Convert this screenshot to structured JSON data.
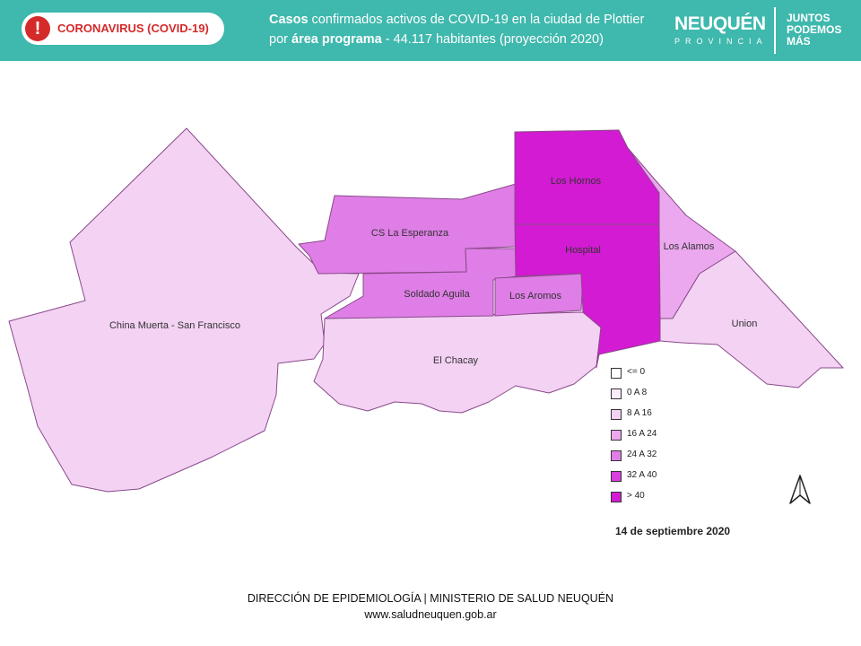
{
  "header": {
    "badge_label": "CORONAVIRUS (COVID-19)",
    "title_line1_bold": "Casos",
    "title_line1_rest": " confirmados activos de COVID-19 en la ciudad de Plottier",
    "title_line2_pre": "por ",
    "title_line2_bold": "área programa",
    "title_line2_rest": " - 44.117 habitantes (proyección 2020)",
    "brand_name": "NEUQUÉN",
    "brand_sub": "PROVINCIA",
    "slogan": [
      "JUNTOS",
      "PODEMOS",
      "MÁS"
    ]
  },
  "map": {
    "areas": [
      {
        "id": "china-muerta",
        "label": "China Muerta - San Francisco",
        "class": "8 A 16",
        "color": "#f3d2f3"
      },
      {
        "id": "el-chacay",
        "label": "El Chacay",
        "class": "8 A 16",
        "color": "#f3d2f3"
      },
      {
        "id": "union",
        "label": "Union",
        "class": "8 A 16",
        "color": "#f3d2f3"
      },
      {
        "id": "los-alamos",
        "label": "Los Alamos",
        "class": "16 A 24",
        "color": "#eba8ee"
      },
      {
        "id": "cs-la-esperanza",
        "label": "CS La Esperanza",
        "class": "24 A 32",
        "color": "#df7ee6"
      },
      {
        "id": "soldado-aguila",
        "label": "Soldado Aguila",
        "class": "24 A 32",
        "color": "#df7ee6"
      },
      {
        "id": "los-aromos",
        "label": "Los Aromos",
        "class": "24 A 32",
        "color": "#df7ee6"
      },
      {
        "id": "hospital",
        "label": "Hospital",
        "class": "> 40",
        "color": "#d21bd2"
      },
      {
        "id": "los-hornos",
        "label": "Los Hornos",
        "class": "> 40",
        "color": "#d21bd2"
      }
    ]
  },
  "legend": [
    {
      "label": "<= 0",
      "color": "#ffffff"
    },
    {
      "label": "0 A 8",
      "color": "#f9ebf9"
    },
    {
      "label": "8 A 16",
      "color": "#f3d2f3"
    },
    {
      "label": "16 A 24",
      "color": "#eba8ee"
    },
    {
      "label": "24 A 32",
      "color": "#df7ee6"
    },
    {
      "label": "32 A 40",
      "color": "#d83fde"
    },
    {
      "label": "> 40",
      "color": "#d21bd2"
    }
  ],
  "date": "14 de septiembre 2020",
  "footer": {
    "line1": "DIRECCIÓN DE EPIDEMIOLOGÍA | MINISTERIO DE SALUD NEUQUÉN",
    "line2": "www.saludneuquen.gob.ar"
  }
}
